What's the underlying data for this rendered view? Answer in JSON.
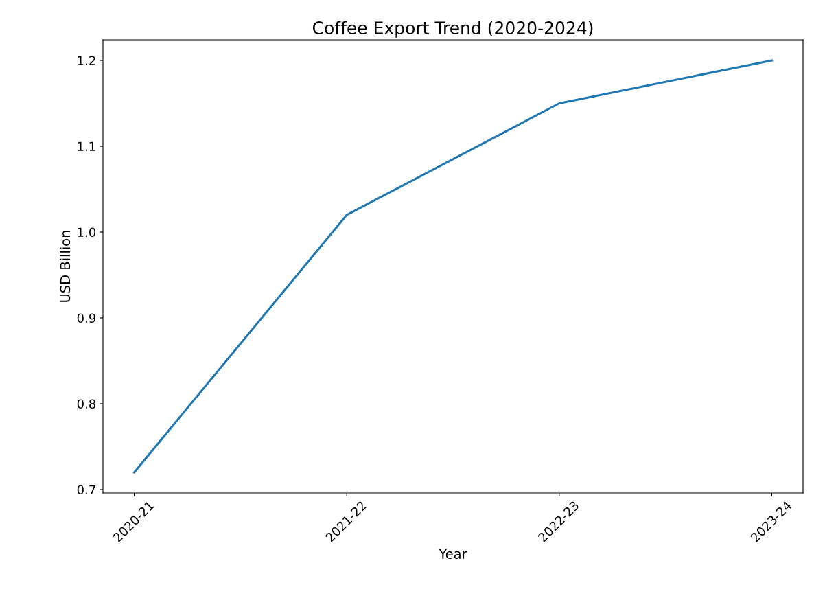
{
  "chart_data": {
    "type": "line",
    "title": "Coffee Export Trend (2020-2024)",
    "xlabel": "Year",
    "ylabel": "USD Billion",
    "categories": [
      "2020-21",
      "2021-22",
      "2022-23",
      "2023-24"
    ],
    "series": [
      {
        "color": "#1f77b4",
        "values": [
          0.72,
          1.02,
          1.15,
          1.2
        ]
      }
    ],
    "ylim": [
      0.696,
      1.224
    ],
    "yticks": [
      0.7,
      0.8,
      0.9,
      {
        "value": 1.0,
        "label": "1.0"
      },
      1.1,
      1.2
    ],
    "grid": false,
    "legend": false
  }
}
